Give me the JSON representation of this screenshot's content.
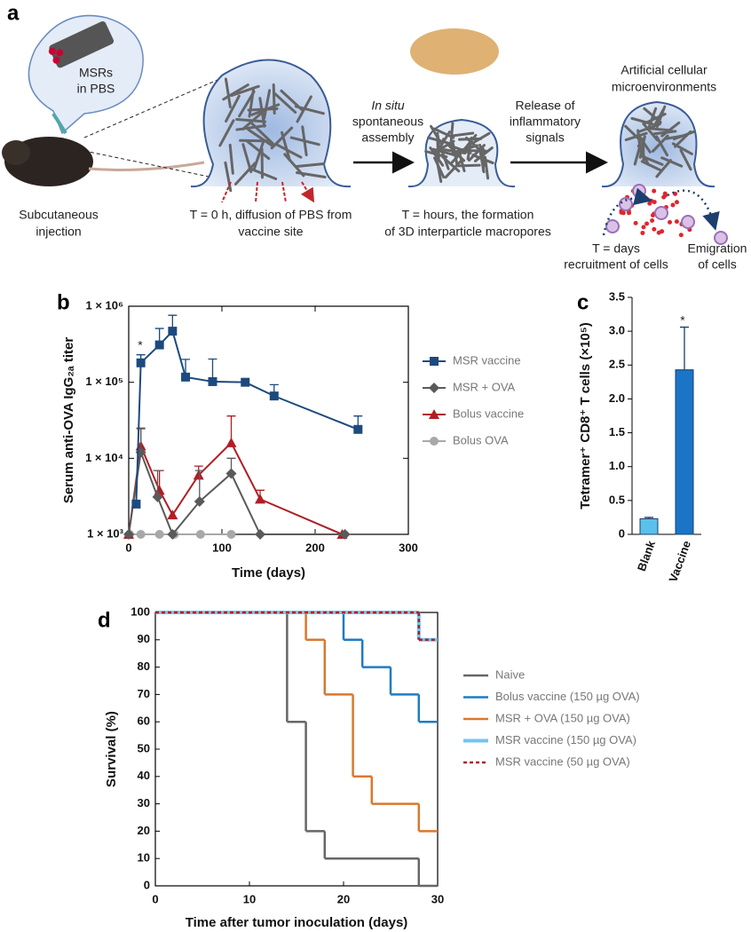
{
  "panel_labels": [
    "a",
    "b",
    "c",
    "d"
  ],
  "diagram": {
    "bubble_label": [
      "MSRs",
      "in PBS"
    ],
    "captions": [
      {
        "lines": [
          "Subcutaneous",
          "injection"
        ]
      },
      {
        "lines": [
          "T = 0 h, diffusion of PBS from",
          "vaccine site"
        ]
      },
      {
        "lines": [
          "In situ",
          "spontaneous",
          "assembly"
        ]
      },
      {
        "lines": [
          "T = hours, the formation",
          "of 3D interparticle macropores"
        ]
      },
      {
        "lines": [
          "Release of",
          "inflammatory",
          "signals"
        ]
      },
      {
        "lines": [
          "Artificial cellular",
          "microenvironments"
        ]
      },
      {
        "lines": [
          "T = days",
          "recruitment of cells"
        ]
      },
      {
        "lines": [
          "Emigration",
          "of cells"
        ]
      }
    ]
  },
  "chart_data": [
    {
      "type": "line",
      "xlabel": "Time (days)",
      "ylabel": "Serum anti-OVA IgG₂ₐ titer",
      "xlim": [
        0,
        300
      ],
      "xticks": [
        0,
        100,
        200,
        300
      ],
      "log_y": true,
      "ylim": [
        1000,
        1000000
      ],
      "yticks": [
        {
          "value": 1000,
          "label": "1 × 10³"
        },
        {
          "value": 10000,
          "label": "1 × 10⁴"
        },
        {
          "value": 100000,
          "label": "1 × 10⁵"
        },
        {
          "value": 1000000,
          "label": "1 × 10⁶"
        }
      ],
      "annotation": "*",
      "series": [
        {
          "name": "MSR vaccine",
          "color": "#1d4a7e",
          "marker": "square",
          "x": [
            8,
            13,
            33,
            47,
            61,
            90,
            125,
            156,
            246
          ],
          "values": [
            2500,
            180000,
            310000,
            470000,
            117000,
            102000,
            100000,
            66000,
            24000
          ],
          "errors": [
            null,
            50000,
            200000,
            290000,
            83000,
            100000,
            null,
            27000,
            12000
          ]
        },
        {
          "name": "MSR + OVA",
          "color": "#5a5a5a",
          "marker": "diamond",
          "x": [
            0,
            13,
            31,
            47,
            76,
            110,
            141,
            232
          ],
          "values": [
            1000,
            12000,
            3100,
            1000,
            2700,
            6300,
            1000,
            1000
          ],
          "errors": [
            null,
            13000,
            3800,
            null,
            4200,
            3700,
            null,
            null
          ]
        },
        {
          "name": "Bolus vaccine",
          "color": "#b01e24",
          "marker": "triangle",
          "x": [
            0,
            13,
            33,
            47,
            75,
            110,
            141,
            229
          ],
          "values": [
            1000,
            14500,
            3800,
            1800,
            6000,
            16000,
            2900,
            1000
          ],
          "errors": [
            null,
            10000,
            3100,
            null,
            1900,
            20000,
            900,
            null
          ]
        },
        {
          "name": "Bolus OVA",
          "color": "#a8a8a8",
          "marker": "circle",
          "x": [
            1,
            13,
            33,
            49,
            77,
            110
          ],
          "values": [
            1000,
            1000,
            1000,
            1000,
            1000,
            1000
          ],
          "errors": [
            null,
            null,
            null,
            null,
            null,
            null
          ]
        }
      ]
    },
    {
      "type": "bar",
      "ylabel": "Tetramer⁺ CD8⁺ T cells (×10⁵)",
      "categories": [
        "Blank",
        "Vaccine"
      ],
      "values": [
        0.23,
        2.43
      ],
      "errors": [
        0.02,
        0.63
      ],
      "colors": [
        "#5bc0eb",
        "#1b74c6"
      ],
      "annotation": "*",
      "ylim": [
        0,
        3.5
      ],
      "yticks": [
        0,
        0.5,
        {
          "value": 1,
          "label": "1.0"
        },
        1.5,
        {
          "value": 2,
          "label": "2.0"
        },
        2.5,
        {
          "value": 3,
          "label": "3.0"
        },
        3.5
      ]
    },
    {
      "type": "step",
      "xlabel": "Time after tumor inoculation (days)",
      "ylabel": "Survival (%)",
      "xlim": [
        0,
        30
      ],
      "xticks": [
        0,
        10,
        20,
        30
      ],
      "ylim": [
        0,
        100
      ],
      "yticks": [
        0,
        10,
        20,
        30,
        40,
        50,
        60,
        70,
        80,
        90,
        100
      ],
      "series": [
        {
          "name": "Naive",
          "color": "#666666",
          "x": [
            0,
            14,
            16,
            18,
            28
          ],
          "values": [
            100,
            60,
            20,
            10,
            0
          ]
        },
        {
          "name": "Bolus vaccine (150 µg OVA)",
          "color": "#1f7bc4",
          "x": [
            0,
            20,
            22,
            25,
            28
          ],
          "values": [
            100,
            90,
            80,
            70,
            60
          ]
        },
        {
          "name": "MSR + OVA (150 µg OVA)",
          "color": "#d9782d",
          "x": [
            0,
            16,
            18,
            21,
            23,
            28
          ],
          "values": [
            100,
            90,
            70,
            40,
            30,
            20
          ]
        },
        {
          "name": "MSR vaccine (150 µg OVA)",
          "color": "#6ec6ef",
          "x": [
            0,
            28
          ],
          "values": [
            100,
            90
          ],
          "width": 4
        },
        {
          "name": "MSR vaccine (50 µg OVA)",
          "color": "#b0202a",
          "x": [
            0,
            28
          ],
          "values": [
            100,
            90
          ],
          "dashed": true
        }
      ]
    }
  ]
}
